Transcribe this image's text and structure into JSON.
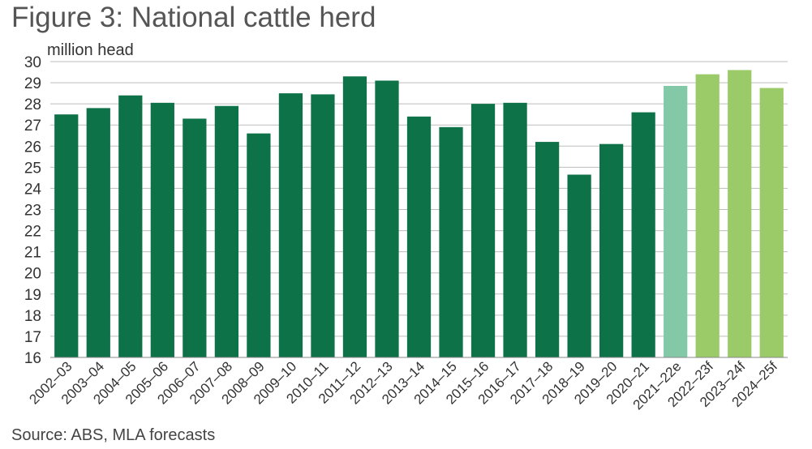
{
  "chart_data": {
    "type": "bar",
    "title": "Figure 3: National cattle herd",
    "ylabel": "million head",
    "xlabel": "",
    "source": "Source: ABS, MLA forecasts",
    "ylim": [
      16,
      30
    ],
    "yticks": [
      16,
      17,
      18,
      19,
      20,
      21,
      22,
      23,
      24,
      25,
      26,
      27,
      28,
      29,
      30
    ],
    "grid": true,
    "categories": [
      "2002–03",
      "2003–04",
      "2004–05",
      "2005–06",
      "2006–07",
      "2007–08",
      "2008–09",
      "2009–10",
      "2010–11",
      "2011–12",
      "2012–13",
      "2013–14",
      "2014–15",
      "2015–16",
      "2016–17",
      "2017–18",
      "2018–19",
      "2019–20",
      "2020–21",
      "2021–22e",
      "2022–23f",
      "2023–24f",
      "2024–25f"
    ],
    "values": [
      27.5,
      27.8,
      28.4,
      28.05,
      27.3,
      27.9,
      26.6,
      28.5,
      28.45,
      29.3,
      29.1,
      27.4,
      26.9,
      28.0,
      28.05,
      26.2,
      24.65,
      26.1,
      27.6,
      28.85,
      29.4,
      29.6,
      28.75
    ],
    "bar_colors": [
      "#0e7249",
      "#0e7249",
      "#0e7249",
      "#0e7249",
      "#0e7249",
      "#0e7249",
      "#0e7249",
      "#0e7249",
      "#0e7249",
      "#0e7249",
      "#0e7249",
      "#0e7249",
      "#0e7249",
      "#0e7249",
      "#0e7249",
      "#0e7249",
      "#0e7249",
      "#0e7249",
      "#0e7249",
      "#84c9a7",
      "#9bcb68",
      "#9bcb68",
      "#9bcb68"
    ]
  }
}
